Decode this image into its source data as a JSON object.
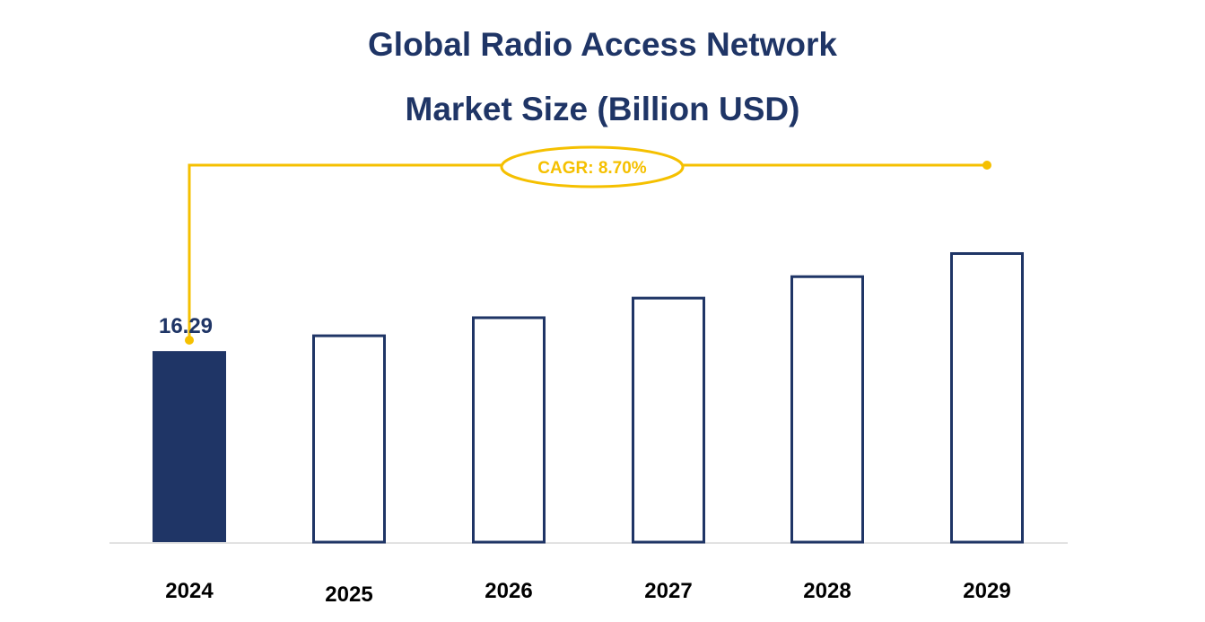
{
  "chart_data": {
    "type": "bar",
    "title_lines": [
      "Global Radio Access Network",
      "Market Size (Billion USD)"
    ],
    "categories": [
      "2024",
      "2025",
      "2026",
      "2027",
      "2028",
      "2029"
    ],
    "values": [
      16.29,
      17.71,
      19.25,
      20.92,
      22.75,
      24.72
    ],
    "data_labels": [
      "16.29",
      "",
      "",
      "",
      "",
      ""
    ],
    "highlight_index": 0,
    "ylim": [
      0,
      27
    ],
    "grid": false,
    "legend": "none",
    "cagr": {
      "label": "CAGR: 8.70%",
      "from_category": "2024",
      "to_category": "2029"
    },
    "colors": {
      "bar": "#1f3566",
      "accent": "#f5c000",
      "baseline": "#d9d9d9"
    }
  }
}
